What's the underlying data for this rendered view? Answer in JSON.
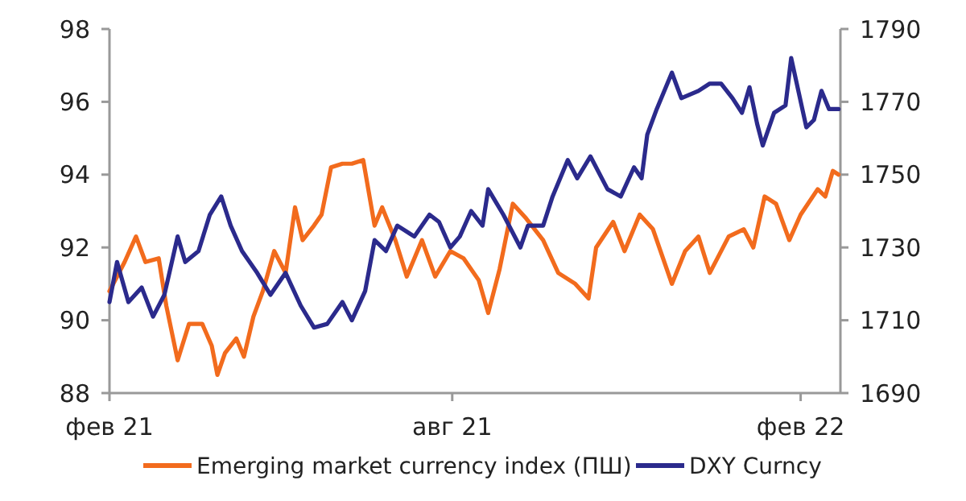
{
  "chart_data": {
    "type": "line",
    "legend": "bottom",
    "grid": false,
    "xlim": [
      "2021-02-01",
      "2022-02-22"
    ],
    "xticks": [
      {
        "value": "2021-02-01",
        "label": "фев 21"
      },
      {
        "value": "2021-08-01",
        "label": "авг 21"
      },
      {
        "value": "2022-02-01",
        "label": "фев 22"
      }
    ],
    "ylim": [
      88,
      98
    ],
    "yticks": [
      88,
      90,
      92,
      94,
      96,
      98
    ],
    "y2lim": [
      1690,
      1790
    ],
    "y2ticks": [
      1690,
      1710,
      1730,
      1750,
      1770,
      1790
    ],
    "series": [
      {
        "name": "Emerging market currency index (ПШ)",
        "color": "#f26b1d",
        "axis": "y2",
        "x": [
          "2021-02-01",
          "2021-02-09",
          "2021-02-15",
          "2021-02-20",
          "2021-02-27",
          "2021-03-03",
          "2021-03-09",
          "2021-03-15",
          "2021-03-22",
          "2021-03-27",
          "2021-03-30",
          "2021-04-03",
          "2021-04-09",
          "2021-04-13",
          "2021-04-18",
          "2021-04-23",
          "2021-04-29",
          "2021-05-05",
          "2021-05-10",
          "2021-05-14",
          "2021-05-20",
          "2021-05-24",
          "2021-05-29",
          "2021-06-04",
          "2021-06-09",
          "2021-06-15",
          "2021-06-21",
          "2021-06-25",
          "2021-07-02",
          "2021-07-08",
          "2021-07-16",
          "2021-07-23",
          "2021-07-31",
          "2021-08-07",
          "2021-08-15",
          "2021-08-20",
          "2021-08-26",
          "2021-09-02",
          "2021-09-09",
          "2021-09-18",
          "2021-09-26",
          "2021-10-05",
          "2021-10-12",
          "2021-10-16",
          "2021-10-25",
          "2021-10-31",
          "2021-11-08",
          "2021-11-15",
          "2021-11-25",
          "2021-12-02",
          "2021-12-09",
          "2021-12-15",
          "2021-12-25",
          "2022-01-02",
          "2022-01-07",
          "2022-01-13",
          "2022-01-19",
          "2022-01-26",
          "2022-02-01",
          "2022-02-10",
          "2022-02-14",
          "2022-02-18",
          "2022-02-21"
        ],
        "values": [
          1718,
          1726,
          1733,
          1726,
          1727,
          1714,
          1699,
          1709,
          1709,
          1703,
          1695,
          1701,
          1705,
          1700,
          1711,
          1718,
          1729,
          1723,
          1741,
          1732,
          1736,
          1739,
          1752,
          1753,
          1753,
          1754,
          1736,
          1741,
          1732,
          1722,
          1732,
          1722,
          1729,
          1727,
          1721,
          1712,
          1724,
          1742,
          1738,
          1732,
          1723,
          1720,
          1716,
          1730,
          1737,
          1729,
          1739,
          1735,
          1720,
          1729,
          1733,
          1723,
          1733,
          1735,
          1730,
          1744,
          1742,
          1732,
          1739,
          1746,
          1744,
          1751,
          1750
        ]
      },
      {
        "name": "DXY Curncy",
        "color": "#2b2a8c",
        "x": [
          "2021-02-01",
          "2021-02-05",
          "2021-02-11",
          "2021-02-18",
          "2021-02-24",
          "2021-03-02",
          "2021-03-09",
          "2021-03-13",
          "2021-03-20",
          "2021-03-26",
          "2021-04-01",
          "2021-04-06",
          "2021-04-12",
          "2021-04-20",
          "2021-04-27",
          "2021-05-05",
          "2021-05-13",
          "2021-05-20",
          "2021-05-27",
          "2021-06-04",
          "2021-06-09",
          "2021-06-16",
          "2021-06-21",
          "2021-06-27",
          "2021-07-03",
          "2021-07-12",
          "2021-07-20",
          "2021-07-25",
          "2021-07-31",
          "2021-08-05",
          "2021-08-11",
          "2021-08-17",
          "2021-08-20",
          "2021-08-28",
          "2021-09-06",
          "2021-09-10",
          "2021-09-18",
          "2021-09-23",
          "2021-10-01",
          "2021-10-06",
          "2021-10-13",
          "2021-10-22",
          "2021-10-29",
          "2021-11-05",
          "2021-11-09",
          "2021-11-12",
          "2021-11-17",
          "2021-11-25",
          "2021-11-30",
          "2021-12-09",
          "2021-12-15",
          "2021-12-21",
          "2021-12-27",
          "2022-01-01",
          "2022-01-05",
          "2022-01-09",
          "2022-01-12",
          "2022-01-18",
          "2022-01-24",
          "2022-01-27",
          "2022-02-04",
          "2022-02-08",
          "2022-02-12",
          "2022-02-16",
          "2022-02-21"
        ],
        "values": [
          90.5,
          91.6,
          90.5,
          90.9,
          90.1,
          90.7,
          92.3,
          91.6,
          91.9,
          92.9,
          93.4,
          92.6,
          91.9,
          91.3,
          90.7,
          91.3,
          90.4,
          89.8,
          89.9,
          90.5,
          90.0,
          90.8,
          92.2,
          91.9,
          92.6,
          92.3,
          92.9,
          92.7,
          92.0,
          92.3,
          93.0,
          92.6,
          93.6,
          92.9,
          92.0,
          92.6,
          92.6,
          93.4,
          94.4,
          93.9,
          94.5,
          93.6,
          93.4,
          94.2,
          93.9,
          95.1,
          95.8,
          96.8,
          96.1,
          96.3,
          96.5,
          96.5,
          96.1,
          95.7,
          96.4,
          95.4,
          94.8,
          95.7,
          95.9,
          97.2,
          95.3,
          95.5,
          96.3,
          95.8,
          95.8
        ]
      }
    ]
  }
}
